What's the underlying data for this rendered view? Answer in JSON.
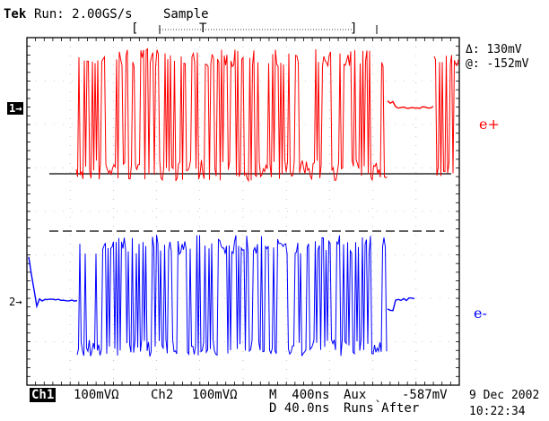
{
  "header": {
    "brand": "Tek",
    "run_status": "Run: 2.00GS/s",
    "mode": "Sample",
    "trigger_bracket_left": "[",
    "trigger_marker": "T",
    "trigger_bracket_right": "]"
  },
  "cursor_readout": {
    "delta": "Δ: 130mV",
    "at": "@: -152mV"
  },
  "channels": {
    "ch1_marker": "1→",
    "ch2_marker": "2→",
    "ch1_label": "e+",
    "ch2_label": "e-",
    "ch1_color": "#ff0000",
    "ch2_color": "#0000ff"
  },
  "footer": {
    "ch1_name": "Ch1",
    "ch1_scale": "100mVΩ",
    "ch2_name": "Ch2",
    "ch2_scale": "100mVΩ",
    "timebase": "M  400ns",
    "delay": "D 40.0ns",
    "trigger_source": "Aux ˎ",
    "trigger_level": "-587mV",
    "trigger_mode": "Runs After",
    "date": "9 Dec 2002",
    "time": "10:22:34"
  }
}
